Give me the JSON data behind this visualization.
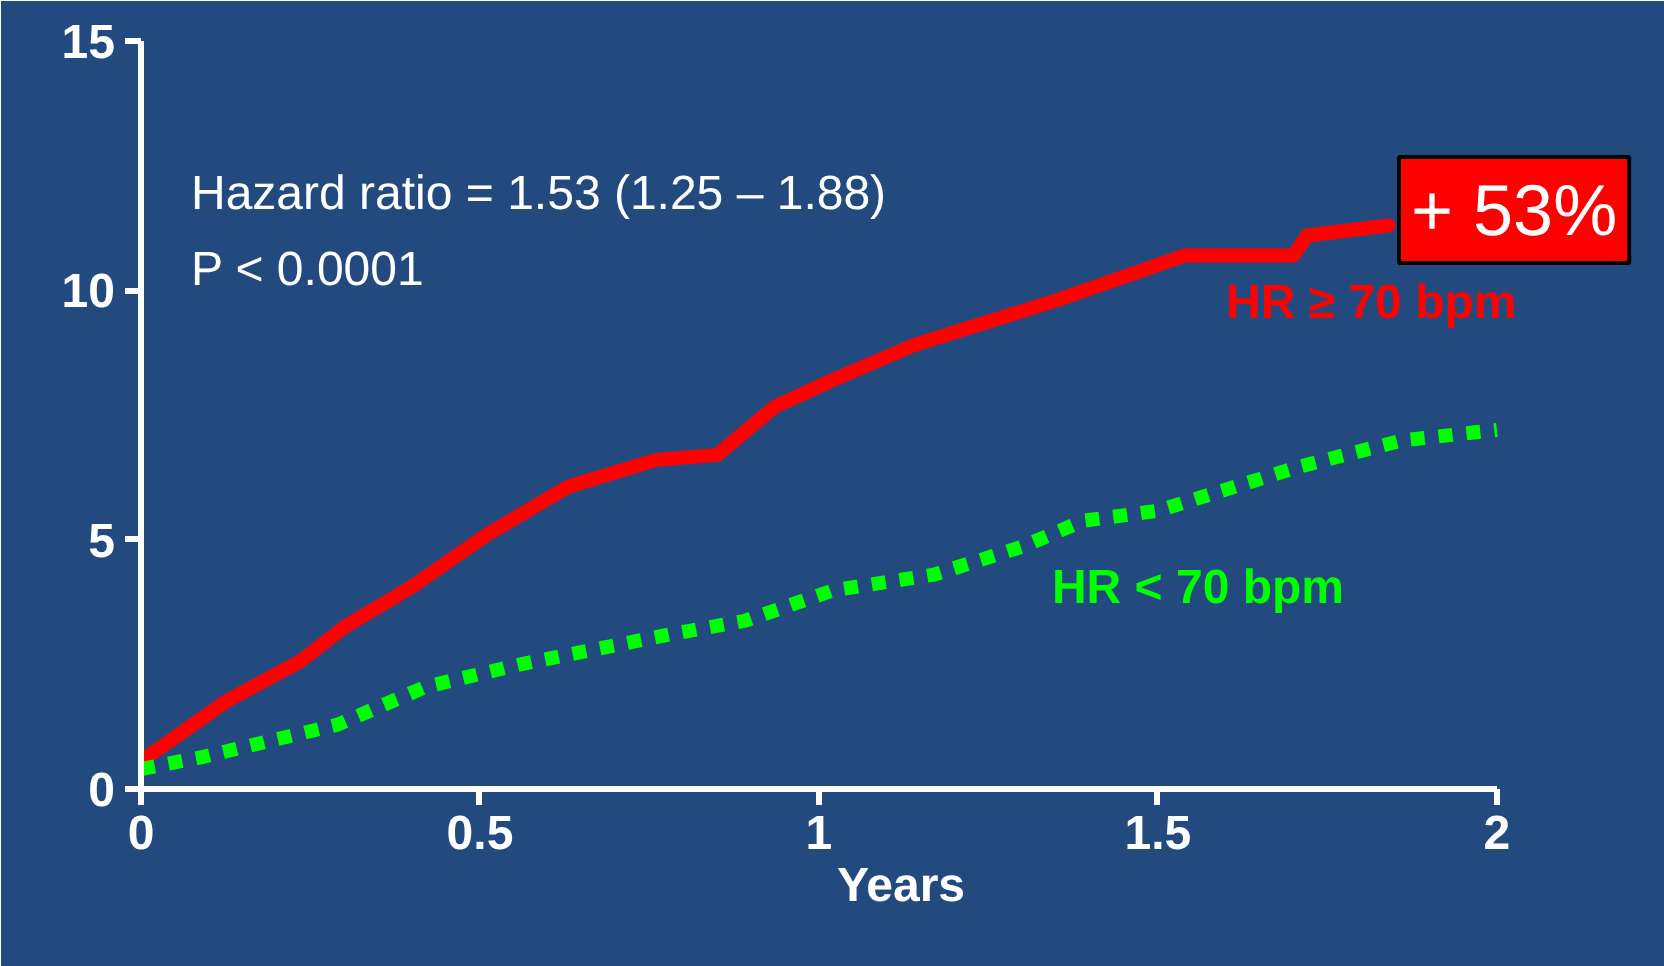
{
  "chart_data": {
    "type": "line",
    "xlabel": "Years",
    "xlim": [
      0,
      2
    ],
    "ylim": [
      0,
      15
    ],
    "xticks": [
      0,
      {
        "value": 0.5,
        "label": "0.5"
      },
      1,
      {
        "value": 1.5,
        "label": "1.5"
      },
      2
    ],
    "yticks": [
      0,
      5,
      10,
      15
    ],
    "annotations": [
      "Hazard ratio = 1.53 (1.25 – 1.88)",
      "P < 0.0001",
      "+ 53%"
    ],
    "series": [
      {
        "name": "HR ≥ 70 bpm",
        "color": "#ff0000",
        "line_style": "solid",
        "x": [
          0,
          0.127,
          0.236,
          0.3,
          0.4,
          0.51,
          0.63,
          0.76,
          0.85,
          0.935,
          1.02,
          1.14,
          1.35,
          1.54,
          1.7,
          1.72,
          1.84
        ],
        "values": [
          0.56,
          1.77,
          2.57,
          3.25,
          4.06,
          5.1,
          6.06,
          6.6,
          6.7,
          7.67,
          8.2,
          8.9,
          9.8,
          10.7,
          10.7,
          11.1,
          11.3
        ]
      },
      {
        "name": "HR < 70 bpm",
        "color": "#00ff00",
        "line_style": "dotted",
        "x": [
          0,
          0.09,
          0.29,
          0.42,
          0.56,
          0.78,
          0.89,
          1.02,
          1.17,
          1.3,
          1.39,
          1.5,
          1.71,
          1.86,
          2.0
        ],
        "values": [
          0.4,
          0.64,
          1.29,
          2.05,
          2.5,
          3.1,
          3.37,
          3.98,
          4.3,
          4.86,
          5.38,
          5.58,
          6.47,
          6.99,
          7.2
        ]
      }
    ]
  }
}
